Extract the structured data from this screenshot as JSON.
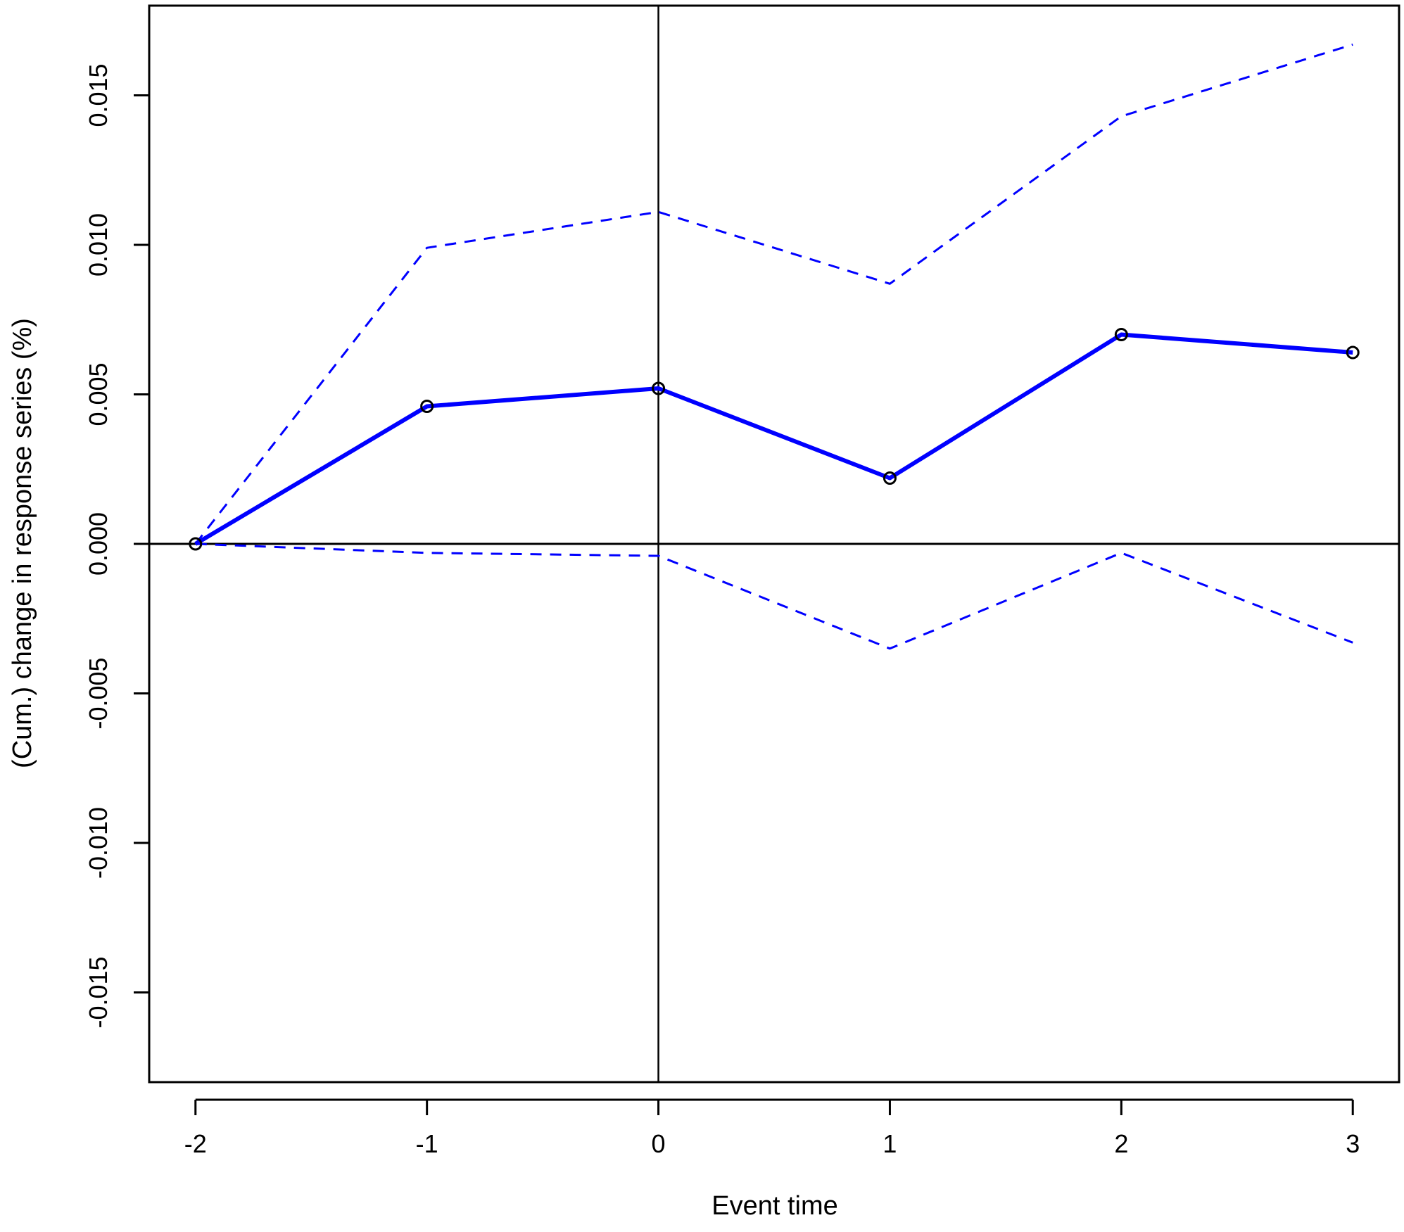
{
  "chart_data": {
    "type": "line",
    "title": "",
    "xlabel": "Event time",
    "ylabel": "(Cum.) change in response series (%)",
    "x": [
      -2,
      -1,
      0,
      1,
      2,
      3
    ],
    "xlim": [
      -2.2,
      3.2
    ],
    "ylim": [
      -0.018,
      0.018
    ],
    "x_ticks": [
      -2,
      -1,
      0,
      1,
      2,
      3
    ],
    "x_tick_labels": [
      "-2",
      "-1",
      "0",
      "1",
      "2",
      "3"
    ],
    "y_ticks": [
      -0.015,
      -0.01,
      -0.005,
      0,
      0.005,
      0.01,
      0.015
    ],
    "y_tick_labels": [
      "-0.015",
      "-0.010",
      "-0.005",
      "0.000",
      "0.005",
      "0.010",
      "0.015"
    ],
    "grid": false,
    "reference_lines": {
      "horizontal": 0,
      "vertical": 0
    },
    "series": [
      {
        "role": "estimate",
        "style": "solid",
        "markers": true,
        "color": "#0000ff",
        "values": [
          0.0,
          0.0046,
          0.0052,
          0.0022,
          0.007,
          0.0064
        ]
      },
      {
        "role": "upper",
        "style": "dashed",
        "markers": false,
        "color": "#0000ff",
        "values": [
          0.0,
          0.0099,
          0.0111,
          0.0087,
          0.0143,
          0.0167
        ]
      },
      {
        "role": "lower",
        "style": "dashed",
        "markers": false,
        "color": "#0000ff",
        "values": [
          0.0,
          -0.0003,
          -0.0004,
          -0.0035,
          -0.0003,
          -0.0033
        ]
      }
    ]
  }
}
